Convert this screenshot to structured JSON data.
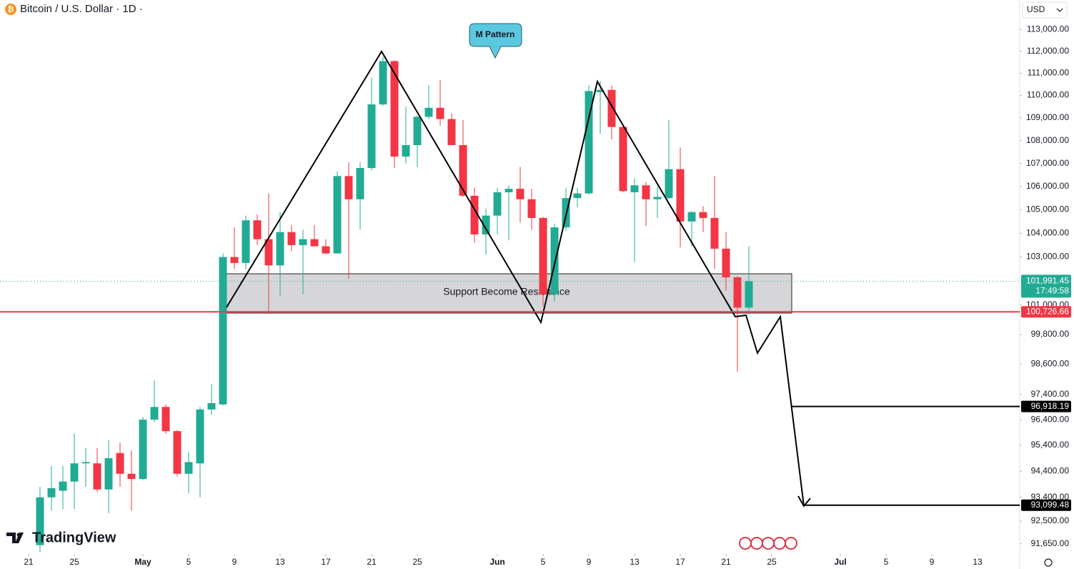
{
  "chart_data": {
    "type": "candlestick",
    "title": "Bitcoin / U.S. Dollar · 1D ·",
    "currency": "USD",
    "logo": "TradingView",
    "log_scale": true,
    "grid": false,
    "up_color": "#22ab94",
    "down_color": "#f23645",
    "x": [
      "Apr 22",
      "Apr 23",
      "Apr 24",
      "Apr 25",
      "Apr 26",
      "Apr 27",
      "Apr 28",
      "Apr 29",
      "Apr 30",
      "May 1",
      "May 2",
      "May 3",
      "May 4",
      "May 5",
      "May 6",
      "May 7",
      "May 8",
      "May 9",
      "May 10",
      "May 11",
      "May 12",
      "May 13",
      "May 14",
      "May 15",
      "May 16",
      "May 17",
      "May 18",
      "May 19",
      "May 20",
      "May 21",
      "May 22",
      "May 23",
      "May 24",
      "May 25",
      "May 26",
      "May 27",
      "May 28",
      "May 29",
      "May 30",
      "May 31",
      "Jun 1",
      "Jun 2",
      "Jun 3",
      "Jun 4",
      "Jun 5",
      "Jun 6",
      "Jun 7",
      "Jun 8",
      "Jun 9",
      "Jun 10",
      "Jun 11",
      "Jun 12",
      "Jun 13",
      "Jun 14",
      "Jun 15",
      "Jun 16",
      "Jun 17",
      "Jun 18",
      "Jun 19",
      "Jun 20",
      "Jun 21",
      "Jun 22",
      "Jun 23"
    ],
    "open": [
      91600,
      93400,
      93650,
      94000,
      94700,
      94700,
      93700,
      95100,
      94300,
      94100,
      96400,
      96900,
      95950,
      94300,
      94700,
      96800,
      97000,
      103000,
      102750,
      104550,
      103750,
      102650,
      104050,
      103500,
      103750,
      103450,
      103150,
      106450,
      105450,
      106800,
      109600,
      111550,
      107300,
      107800,
      109050,
      109450,
      108950,
      107800,
      105600,
      103950,
      104750,
      105750,
      105900,
      105450,
      104650,
      101450,
      104250,
      105500,
      105700,
      110150,
      110250,
      108600,
      105750,
      106050,
      105450,
      105500,
      106750,
      104500,
      104900,
      104650,
      103350,
      102150,
      100900
    ],
    "high": [
      93800,
      94600,
      94600,
      95850,
      95300,
      95300,
      95600,
      95500,
      95200,
      96500,
      97950,
      97000,
      96000,
      95150,
      96900,
      97800,
      103150,
      104250,
      104750,
      104800,
      105700,
      104900,
      104350,
      104150,
      104350,
      103750,
      106650,
      107050,
      107050,
      110800,
      111750,
      111600,
      109500,
      109100,
      110450,
      110700,
      109200,
      108900,
      105950,
      105050,
      105950,
      106050,
      106850,
      105900,
      104700,
      104400,
      105950,
      105950,
      110450,
      110650,
      110450,
      108700,
      106350,
      106200,
      106000,
      108900,
      107700,
      104950,
      105150,
      106450,
      104050,
      102200,
      103450
    ],
    "low": [
      91330,
      92900,
      92950,
      92950,
      93800,
      93600,
      92800,
      93800,
      92900,
      94050,
      96300,
      95850,
      94200,
      93550,
      93400,
      96600,
      96950,
      102500,
      102500,
      103500,
      100650,
      101400,
      103250,
      101450,
      103450,
      103100,
      103150,
      102100,
      104150,
      106700,
      109550,
      106800,
      107000,
      106850,
      108950,
      108650,
      107800,
      105550,
      103600,
      103100,
      103950,
      103700,
      104450,
      104150,
      100950,
      101150,
      104100,
      105100,
      105650,
      108300,
      108050,
      105750,
      102800,
      104300,
      104650,
      105450,
      103400,
      103450,
      104050,
      102500,
      101600,
      98300,
      100600
    ],
    "close": [
      93400,
      93750,
      94000,
      94700,
      94750,
      93700,
      94900,
      94300,
      94100,
      96400,
      96900,
      95950,
      94300,
      94750,
      96800,
      97050,
      103000,
      102750,
      104550,
      103750,
      102650,
      104050,
      103500,
      103750,
      103450,
      103150,
      106450,
      105450,
      106800,
      109600,
      111550,
      107300,
      107800,
      109050,
      109450,
      108950,
      107800,
      105600,
      103950,
      104750,
      105750,
      105900,
      105450,
      104650,
      101450,
      104250,
      105500,
      105700,
      110200,
      110250,
      108600,
      105800,
      106050,
      105450,
      105550,
      106750,
      104500,
      104900,
      104650,
      103350,
      102150,
      100900,
      101991.45
    ],
    "ylim": [
      91270,
      114360
    ],
    "yticks": [
      {
        "value": 113000,
        "label": "113,000.00"
      },
      {
        "value": 112000,
        "label": "112,000.00"
      },
      {
        "value": 111000,
        "label": "111,000.00"
      },
      {
        "value": 110000,
        "label": "110,000.00"
      },
      {
        "value": 109000,
        "label": "109,000.00"
      },
      {
        "value": 108000,
        "label": "108,000.00"
      },
      {
        "value": 107000,
        "label": "107,000.00"
      },
      {
        "value": 106000,
        "label": "106,000.00"
      },
      {
        "value": 105000,
        "label": "105,000.00"
      },
      {
        "value": 104000,
        "label": "104,000.00"
      },
      {
        "value": 103000,
        "label": "103,000.00"
      },
      {
        "value": 101000,
        "label": "101,000.00"
      },
      {
        "value": 99800,
        "label": "99,800.00"
      },
      {
        "value": 98600,
        "label": "98,600.00"
      },
      {
        "value": 97400,
        "label": "97,400.00"
      },
      {
        "value": 96400,
        "label": "96,400.00"
      },
      {
        "value": 95400,
        "label": "95,400.00"
      },
      {
        "value": 94400,
        "label": "94,400.00"
      },
      {
        "value": 93400,
        "label": "93,400.00"
      },
      {
        "value": 92500,
        "label": "92,500.00"
      },
      {
        "value": 91650,
        "label": "91,650.00"
      }
    ],
    "xticks": [
      {
        "value": "Apr 21",
        "label": "21"
      },
      {
        "value": "Apr 25",
        "label": "25"
      },
      {
        "value": "May 1",
        "label": "May"
      },
      {
        "value": "May 5",
        "label": "5"
      },
      {
        "value": "May 9",
        "label": "9"
      },
      {
        "value": "May 13",
        "label": "13"
      },
      {
        "value": "May 17",
        "label": "17"
      },
      {
        "value": "May 21",
        "label": "21"
      },
      {
        "value": "May 25",
        "label": "25"
      },
      {
        "value": "Jun 1",
        "label": "Jun"
      },
      {
        "value": "Jun 5",
        "label": "5"
      },
      {
        "value": "Jun 9",
        "label": "9"
      },
      {
        "value": "Jun 13",
        "label": "13"
      },
      {
        "value": "Jun 17",
        "label": "17"
      },
      {
        "value": "Jun 21",
        "label": "21"
      },
      {
        "value": "Jun 25",
        "label": "25"
      },
      {
        "value": "Jul 1",
        "label": "Jul"
      },
      {
        "value": "Jul 5",
        "label": "5"
      },
      {
        "value": "Jul 9",
        "label": "9"
      },
      {
        "value": "Jul 13",
        "label": "13"
      }
    ],
    "last_price": {
      "value": 101991.45,
      "label": "101,991.45",
      "countdown": "17:49:58"
    },
    "price_lines": [
      {
        "value": 100726.66,
        "label": "100,726.66",
        "color": "#f23645"
      },
      {
        "value": 96918.19,
        "label": "96,918.19",
        "color": "#000000"
      },
      {
        "value": 93099.48,
        "label": "93,099.48",
        "color": "#000000"
      }
    ],
    "annotations": {
      "callout": "M Pattern",
      "zone": "Support Become Resistance"
    }
  }
}
